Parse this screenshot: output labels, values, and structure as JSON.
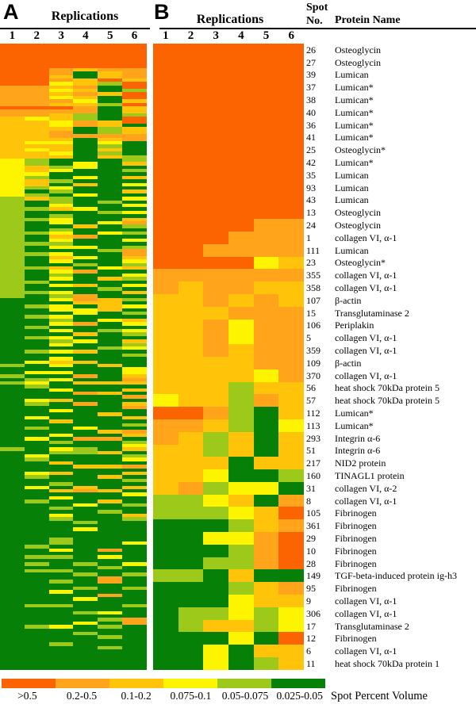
{
  "panel_a": {
    "label": "A",
    "title": "Replications",
    "columns": [
      "1",
      "2",
      "3",
      "4",
      "5",
      "6"
    ]
  },
  "panel_b": {
    "label": "B",
    "title": "Replications",
    "columns": [
      "1",
      "2",
      "3",
      "4",
      "5",
      "6"
    ],
    "spot_no_header": [
      "Spot",
      "No."
    ],
    "protein_header": "Protein Name"
  },
  "palette": {
    "o": "#FB6400",
    "a": "#FFA41B",
    "g": "#FFC40A",
    "y": "#FDF500",
    "l": "#9CC91A",
    "d": "#078007"
  },
  "legend": {
    "title": "Spot Percent Volume",
    "items": [
      {
        "label": ">0.5",
        "key": "o"
      },
      {
        "label": "0.2-0.5",
        "key": "a"
      },
      {
        "label": "0.1-0.2",
        "key": "g"
      },
      {
        "label": "0.075-0.1",
        "key": "y"
      },
      {
        "label": "0.05-0.075",
        "key": "l"
      },
      {
        "label": "0.025-0.05",
        "key": "d"
      }
    ]
  },
  "chart_data": {
    "type": "heatmap",
    "unit": "Spot Percent Volume",
    "columns": [
      "1",
      "2",
      "3",
      "4",
      "5",
      "6"
    ],
    "bins": {
      "o": ">0.5",
      "a": "0.2-0.5",
      "g": "0.1-0.2",
      "y": "0.075-0.1",
      "l": "0.05-0.075",
      "d": "0.025-0.05"
    },
    "panels": [
      {
        "id": "A",
        "title": "Replications",
        "n_rows": 180,
        "rows": [
          "oooooo",
          "oooooo",
          "oooooo",
          "oooooo",
          "oooooo",
          "oooooo",
          "oooooo",
          "ooagaa",
          "ooadga",
          "oogdga",
          "ooagog",
          "ooyglo",
          "aagado",
          "aaygdl",
          "aagago",
          "aaygdo",
          "aaaydg",
          "aagglo",
          "oooadg",
          "aaaadg",
          "aagldl",
          "gygldo",
          "ggyago",
          "ggyagd",
          "gggdlg",
          "ggadlg",
          "ggaaaa",
          "gggdga",
          "gyydyd",
          "gggdld",
          "gygdgd",
          "ggydld",
          "gggdgl",
          "yldddl",
          "yldydg",
          "yglydd",
          "ygyddl",
          "yydddd",
          "yldydg",
          "yglddd",
          "ygdgdy",
          "ylyddd",
          "ydlddg",
          "yldydd",
          "lglddy",
          "ldldld",
          "ldyddy",
          "llgydd",
          "ldddly",
          "ldlddd",
          "llyddg",
          "ldydya",
          "lddgdl",
          "ldlddd",
          "llydyl",
          "ldgadd",
          "ldyddy",
          "lllddd",
          "ldyydl",
          "ldddla",
          "llydda",
          "ldgydg",
          "ldyddy",
          "lddldl",
          "llgdyg",
          "ldyadd",
          "ldlddy",
          "ldydgl",
          "lldddd",
          "ldygdy",
          "ldddld",
          "llyddg",
          "ldladd",
          "ddyagl",
          "dddggd",
          "dlydgy",
          "ddyygd",
          "dddydl",
          "dlyddd",
          "ddldyg",
          "ddyady",
          "dldddd",
          "ddydly",
          "dddgdl",
          "dlyddd",
          "ddlydg",
          "ddyddl",
          "ddddly",
          "dlygdd",
          "dddddl",
          "ddyddd",
          "dyggdd",
          "ldydgd",
          "dddddy",
          "dyyddy",
          "lddadg",
          "dlydda",
          "lydggg",
          "dldddd",
          "ddyddg",
          "dddagd",
          "ddddda",
          "dygddd",
          "dldadg",
          "ddddda",
          "ddyddd",
          "ddddgd",
          "dydddg",
          "ddgddd",
          "dddddl",
          "dldydd",
          "ddddga",
          "ddyddg",
          "dydaad",
          "ddlddl",
          "dddddy",
          "ldyldg",
          "ddllgd",
          "dydddl",
          "dldddy",
          "ddgddd",
          "dddgga",
          "dddddd",
          "dygddg",
          "dlddgd",
          "dddddl",
          "ddlddd",
          "dydgdg",
          "ddgagd",
          "dddddy",
          "ddyddd",
          "dlddgd",
          "dddydl",
          "ddlddd",
          "ddddld",
          "ddyddg",
          "ddlddl",
          "dddldd",
          "dddddd",
          "dddydd",
          "dddddd",
          "dddddd",
          "ddlddd",
          "ddlddy",
          "dldddd",
          "ddydad",
          "dddddd",
          "dlldyd",
          "dddddd",
          "dldldy",
          "ddddld",
          "dllddd",
          "dddldl",
          "ddddad",
          "ddldad",
          "dddddd",
          "dddldl",
          "ddyddd",
          "ddddad",
          "dddydd",
          "dddddd",
          "dllddl",
          "dddddd",
          "dddlyd",
          "dddddd",
          "ddddla",
          "dddyda",
          "dlydld",
          "dddddd",
          "dddldd",
          "ddddld",
          "dddddd",
          "ddlddd",
          "ddddld",
          "dddddd",
          "dddddd",
          "dddddd",
          "dddddd",
          "dddddd",
          "dddddd"
        ]
      },
      {
        "id": "B",
        "title": "Replications",
        "n_rows": 50,
        "rows": [
          {
            "spot": "26",
            "protein": "Osteoglycin",
            "cells": "oooooo"
          },
          {
            "spot": "27",
            "protein": "Osteoglycin",
            "cells": "oooooo"
          },
          {
            "spot": "39",
            "protein": "Lumican",
            "cells": "oooooo"
          },
          {
            "spot": "37",
            "protein": "Lumican*",
            "cells": "oooooo"
          },
          {
            "spot": "38",
            "protein": "Lumican*",
            "cells": "oooooo"
          },
          {
            "spot": "40",
            "protein": "Lumican*",
            "cells": "oooooo"
          },
          {
            "spot": "36",
            "protein": "Lumican*",
            "cells": "oooooo"
          },
          {
            "spot": "41",
            "protein": "Lumican*",
            "cells": "oooooo"
          },
          {
            "spot": "25",
            "protein": "Osteoglycin*",
            "cells": "oooooo"
          },
          {
            "spot": "42",
            "protein": "Lumican*",
            "cells": "oooooo"
          },
          {
            "spot": "35",
            "protein": "Lumican",
            "cells": "oooooo"
          },
          {
            "spot": "93",
            "protein": "Lumican",
            "cells": "oooooo"
          },
          {
            "spot": "43",
            "protein": "Lumican",
            "cells": "oooooo"
          },
          {
            "spot": "13",
            "protein": "Osteoglycin",
            "cells": "oooooo"
          },
          {
            "spot": "24",
            "protein": "Osteoglycin",
            "cells": "ooooaa"
          },
          {
            "spot": "1",
            "protein": "collagen VI, α-1",
            "cells": "oooaaa"
          },
          {
            "spot": "111",
            "protein": "Lumican",
            "cells": "ooaaaa"
          },
          {
            "spot": "23",
            "protein": "Osteoglycin*",
            "cells": "ooooyg"
          },
          {
            "spot": "355",
            "protein": "collagen VI, α-1",
            "cells": "aaaaaa"
          },
          {
            "spot": "358",
            "protein": "collagen VI, α-1",
            "cells": "agaagg"
          },
          {
            "spot": "107",
            "protein": "β-actin",
            "cells": "ggagag"
          },
          {
            "spot": "15",
            "protein": "Transglutaminase 2",
            "cells": "gggaaa"
          },
          {
            "spot": "106",
            "protein": "Periplakin",
            "cells": "ggayaa"
          },
          {
            "spot": "5",
            "protein": "collagen VI, α-1",
            "cells": "ggayaa"
          },
          {
            "spot": "359",
            "protein": "collagen VI, α-1",
            "cells": "ggagaa"
          },
          {
            "spot": "109",
            "protein": "β-actin",
            "cells": "ggggaa"
          },
          {
            "spot": "370",
            "protein": "collagen VI, α-1",
            "cells": "ggggya"
          },
          {
            "spot": "56",
            "protein": "heat shock 70kDa protein 5",
            "cells": "ggglgg"
          },
          {
            "spot": "57",
            "protein": "heat shock 70kDa protein 5",
            "cells": "ygglag"
          },
          {
            "spot": "112",
            "protein": "Lumican*",
            "cells": "ooaldg"
          },
          {
            "spot": "113",
            "protein": "Lumican*",
            "cells": "aagldy"
          },
          {
            "spot": "293",
            "protein": "Integrin α-6",
            "cells": "aglgdg"
          },
          {
            "spot": "51",
            "protein": "Integrin α-6",
            "cells": "gglgdg"
          },
          {
            "spot": "217",
            "protein": "NID2 protein",
            "cells": "gggdgg"
          },
          {
            "spot": "160",
            "protein": "TINAGL1 protein",
            "cells": "ggyddl"
          },
          {
            "spot": "31",
            "protein": "collagen VI, α-2",
            "cells": "galyyd"
          },
          {
            "spot": "8",
            "protein": "collagen VI, α-1",
            "cells": "llygda"
          },
          {
            "spot": "105",
            "protein": "Fibrinogen",
            "cells": "lllygo"
          },
          {
            "spot": "361",
            "protein": "Fibrinogen",
            "cells": "dddlga"
          },
          {
            "spot": "29",
            "protein": "Fibrinogen",
            "cells": "ddyyao"
          },
          {
            "spot": "10",
            "protein": "Fibrinogen",
            "cells": "dddlao"
          },
          {
            "spot": "28",
            "protein": "Fibrinogen",
            "cells": "ddllao"
          },
          {
            "spot": "149",
            "protein": "TGF-beta-induced protein ig-h3",
            "cells": "lldgdd"
          },
          {
            "spot": "95",
            "protein": "Fibrinogen",
            "cells": "dddlga"
          },
          {
            "spot": "9",
            "protein": "collagen VI, α-1",
            "cells": "dddygg"
          },
          {
            "spot": "306",
            "protein": "collagen VI, α-1",
            "cells": "dllyly"
          },
          {
            "spot": "17",
            "protein": "Transglutaminase 2",
            "cells": "dlggly"
          },
          {
            "spot": "12",
            "protein": "Fibrinogen",
            "cells": "dddydo"
          },
          {
            "spot": "6",
            "protein": "collagen VI, α-1",
            "cells": "ddydgg"
          },
          {
            "spot": "11",
            "protein": "heat shock 70kDa protein 1",
            "cells": "ddydlg"
          }
        ]
      }
    ]
  }
}
